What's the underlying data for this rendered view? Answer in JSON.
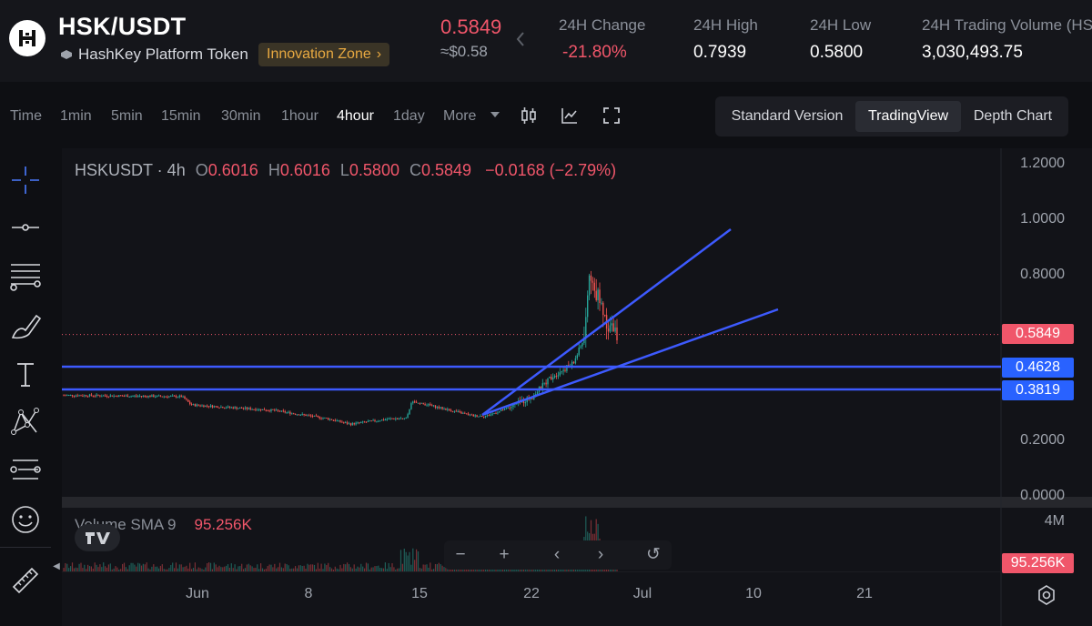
{
  "header": {
    "pair": "HSK/USDT",
    "token_name": "HashKey Platform Token",
    "zone_badge": "Innovation Zone",
    "last_price": "0.5849",
    "usd_price": "≈$0.58",
    "stats": [
      {
        "label": "24H Change",
        "value": "-21.80%"
      },
      {
        "label": "24H High",
        "value": "0.7939"
      },
      {
        "label": "24H Low",
        "value": "0.5800"
      },
      {
        "label": "24H Trading Volume (HS",
        "value": "3,030,493.75"
      }
    ]
  },
  "toolbar": {
    "timeframes": [
      "Time",
      "1min",
      "5min",
      "15min",
      "30min",
      "1hour",
      "4hour",
      "1day",
      "More"
    ],
    "active_timeframe": "4hour",
    "versions": [
      "Standard Version",
      "TradingView",
      "Depth Chart"
    ],
    "active_version": "TradingView"
  },
  "left_tools": [
    "crosshair-icon",
    "horizontal-line-icon",
    "fib-lines-icon",
    "brush-icon",
    "text-icon",
    "pattern-icon",
    "measure-lines-icon",
    "emoji-icon",
    "ruler-icon"
  ],
  "legend": {
    "symbol": "HSKUSDT · 4h",
    "open_key": "O",
    "open": "0.6016",
    "high_key": "H",
    "high": "0.6016",
    "low_key": "L",
    "low": "0.5800",
    "close_key": "C",
    "close": "0.5849",
    "change": "−0.0168 (−2.79%)"
  },
  "volume_legend": {
    "label": "Volume SMA 9",
    "value": "95.256K"
  },
  "y_axis": {
    "ticks": [
      "1.2000",
      "1.0000",
      "0.8000",
      "0.0000"
    ],
    "hidden_ticks_note": "",
    "tick_0_2": "0.2000",
    "volume_tick": "4M"
  },
  "price_labels": {
    "last": "0.5849",
    "level_1": "0.4628",
    "level_2": "0.3819",
    "volume_last": "95.256K"
  },
  "x_axis": [
    "Jun",
    "8",
    "15",
    "22",
    "Jul",
    "10",
    "21"
  ],
  "colors": {
    "up": "#26a69a",
    "down": "#ef5350",
    "drawing": "#3d5afe",
    "price_red": "#f0566a",
    "label_blue": "#2962ff"
  }
}
